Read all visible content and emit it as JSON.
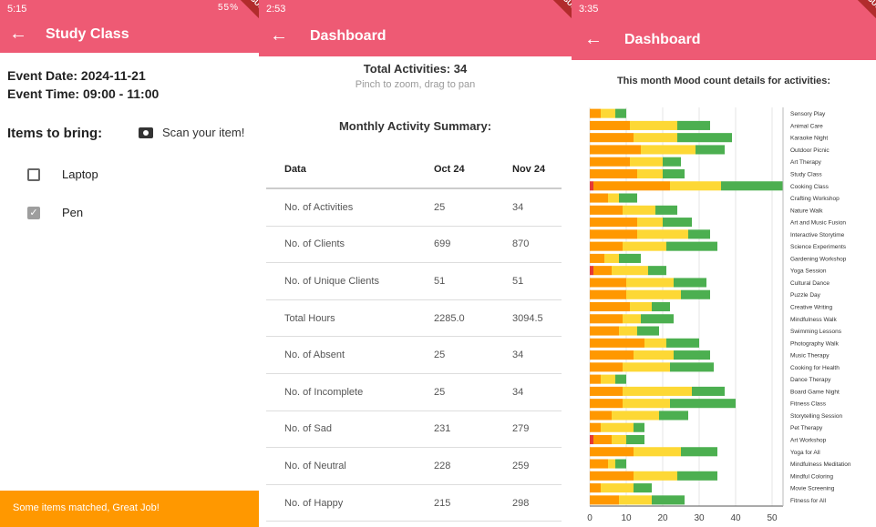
{
  "p1": {
    "status": {
      "time": "5:15",
      "right": "55%"
    },
    "title": "Study Class",
    "event_date": "Event Date: 2024-11-21",
    "event_time": "Event Time: 09:00 - 11:00",
    "items_label": "Items to bring:",
    "scan_label": "Scan your item!",
    "items": [
      {
        "label": "Laptop",
        "checked": false
      },
      {
        "label": "Pen",
        "checked": true
      }
    ],
    "toast": "Some items matched, Great Job!"
  },
  "p2": {
    "status": {
      "time": "2:53"
    },
    "title": "Dashboard",
    "total": "Total Activities: 34",
    "hint": "Pinch to zoom, drag to pan",
    "summary_title": "Monthly Activity Summary:",
    "headers": [
      "Data",
      "Oct 24",
      "Nov 24"
    ],
    "rows": [
      [
        "No. of Activities",
        "25",
        "34"
      ],
      [
        "No. of Clients",
        "699",
        "870"
      ],
      [
        "No. of Unique Clients",
        "51",
        "51"
      ],
      [
        "Total Hours",
        "2285.0",
        "3094.5"
      ],
      [
        "No. of Absent",
        "25",
        "34"
      ],
      [
        "No. of Incomplete",
        "25",
        "34"
      ],
      [
        "No. of Sad",
        "231",
        "279"
      ],
      [
        "No. of Neutral",
        "228",
        "259"
      ],
      [
        "No. of Happy",
        "215",
        "298"
      ]
    ]
  },
  "p3": {
    "status": {
      "time": "3:35"
    },
    "title": "Dashboard",
    "debug_label": "DEBUG",
    "chart_title": "This month Mood count details for activities:"
  },
  "colors": {
    "appbar": "#ee5a74",
    "toast": "#ff9800",
    "sad": "#e53935",
    "neutral_orange": "#ff9800",
    "yellow": "#fdd835",
    "green": "#4caf50"
  },
  "chart_data": {
    "type": "bar",
    "orientation": "horizontal",
    "stacked": true,
    "xlim": [
      0,
      53
    ],
    "xticks": [
      0,
      10,
      20,
      30,
      40,
      50
    ],
    "segment_colors": [
      "#e53935",
      "#ff9800",
      "#fdd835",
      "#4caf50"
    ],
    "categories": [
      "Sensory Play",
      "Animal Care",
      "Karaoke Night",
      "Outdoor Picnic",
      "Art Therapy",
      "Study Class",
      "Cooking Class",
      "Crafting Workshop",
      "Nature Walk",
      "Art and Music Fusion",
      "Interactive Storytime",
      "Science Experiments",
      "Gardening Workshop",
      "Yoga Session",
      "Cultural Dance",
      "Puzzle Day",
      "Creative Writing",
      "Mindfulness Walk",
      "Swimming Lessons",
      "Photography Walk",
      "Music Therapy",
      "Cooking for Health",
      "Dance Therapy",
      "Board Game Night",
      "Fitness Class",
      "Storytelling Session",
      "Pet Therapy",
      "Art Workshop",
      "Yoga for All",
      "Mindfulness Meditation",
      "Mindful Coloring",
      "Movie Screening",
      "Fitness for All"
    ],
    "segments": [
      [
        0,
        3,
        4,
        3
      ],
      [
        0,
        11,
        13,
        9
      ],
      [
        0,
        12,
        12,
        15
      ],
      [
        0,
        14,
        15,
        8
      ],
      [
        0,
        11,
        9,
        5
      ],
      [
        0,
        13,
        7,
        6
      ],
      [
        1,
        21,
        14,
        17
      ],
      [
        0,
        5,
        3,
        5
      ],
      [
        0,
        9,
        9,
        6
      ],
      [
        0,
        13,
        7,
        8
      ],
      [
        0,
        13,
        14,
        6
      ],
      [
        0,
        9,
        12,
        14
      ],
      [
        0,
        4,
        4,
        6
      ],
      [
        1,
        5,
        10,
        5
      ],
      [
        0,
        10,
        13,
        9
      ],
      [
        0,
        10,
        15,
        8
      ],
      [
        0,
        11,
        6,
        5
      ],
      [
        0,
        9,
        5,
        9
      ],
      [
        0,
        8,
        5,
        6
      ],
      [
        0,
        15,
        6,
        9
      ],
      [
        0,
        12,
        11,
        10
      ],
      [
        0,
        9,
        13,
        12
      ],
      [
        0,
        3,
        4,
        3
      ],
      [
        0,
        9,
        19,
        9
      ],
      [
        0,
        9,
        13,
        18
      ],
      [
        0,
        6,
        13,
        8
      ],
      [
        0,
        3,
        9,
        3
      ],
      [
        1,
        5,
        4,
        5
      ],
      [
        0,
        12,
        13,
        10
      ],
      [
        0,
        5,
        2,
        3
      ],
      [
        0,
        12,
        12,
        11
      ],
      [
        0,
        3,
        9,
        5
      ],
      [
        0,
        8,
        9,
        9
      ]
    ]
  }
}
